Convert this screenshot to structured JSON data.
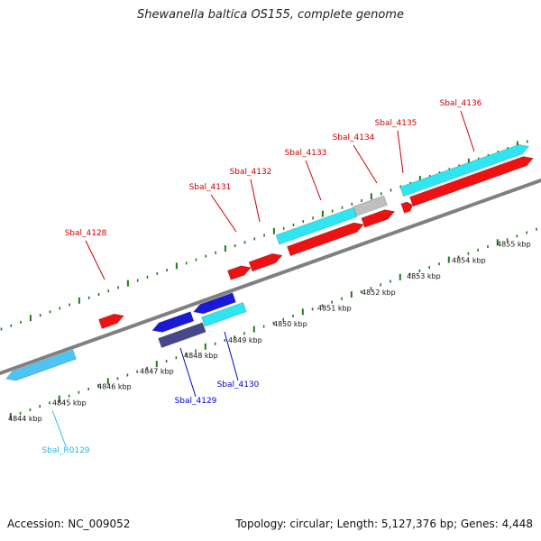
{
  "title": "Shewanella baltica OS155, complete genome",
  "footer": {
    "accession": "Accession: NC_009052",
    "summary": "Topology: circular; Length: 5,127,376 bp; Genes: 4,448"
  },
  "colors": {
    "forward_cds": "#ee1111",
    "reverse_cds": "#1a1ad6",
    "forward_rna": "#2ee6f0",
    "reverse_rna": "#4cc4f4",
    "pseudo": "#bfbfbf",
    "reverse_other": "#47478a",
    "ticks": "#1f7a1f",
    "backbone": "#808080",
    "label_forward": "#cc0000",
    "label_reverse": "#0000cc",
    "label_rna": "#22b8e8"
  },
  "kbp_labels": [
    "4844 kbp",
    "4845 kbp",
    "4846 kbp",
    "4847 kbp",
    "4848 kbp",
    "4849 kbp",
    "4850 kbp",
    "4851 kbp",
    "4852 kbp",
    "4853 kbp",
    "4854 kbp",
    "4855 kbp"
  ],
  "gene_labels": [
    "Sbal_4128",
    "Sbal_4131",
    "Sbal_4132",
    "Sbal_4133",
    "Sbal_4134",
    "Sbal_4135",
    "Sbal_4136",
    "Sbal_4129",
    "Sbal_4130",
    "Sbal_R0129"
  ]
}
